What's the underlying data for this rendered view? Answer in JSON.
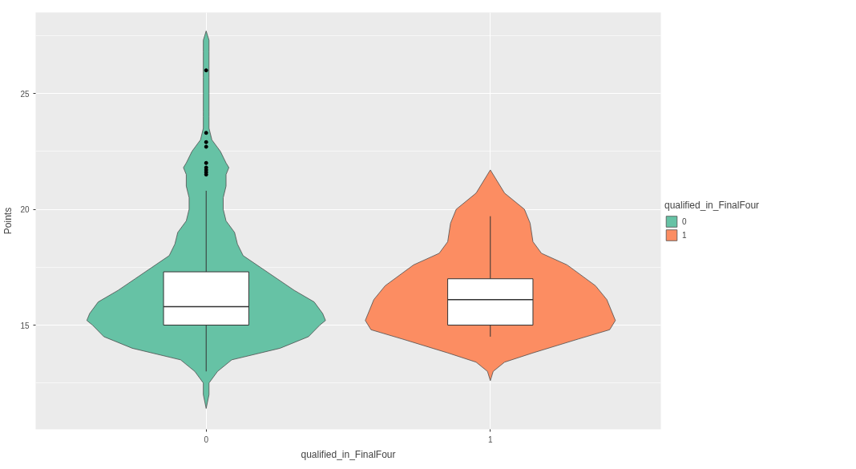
{
  "chart_data": {
    "type": "box",
    "xlabel": "qualified_in_FinalFour",
    "ylabel": "Points",
    "legend_title": "qualified_in_FinalFour",
    "series": [
      {
        "name": "0",
        "color": "#66c2a5",
        "type": "area",
        "x": [
          0,
          -0.01,
          -0.01,
          -0.04,
          -0.09,
          -0.26,
          -0.36,
          -0.4,
          -0.42,
          -0.41,
          -0.38,
          -0.31,
          -0.25,
          -0.19,
          -0.13,
          -0.11,
          -0.1,
          -0.07,
          -0.06,
          -0.06,
          -0.07,
          -0.07,
          -0.08,
          -0.07,
          -0.05,
          -0.02,
          -0.01,
          -0.01,
          -0.01,
          -0.01,
          -0.01,
          -0.01,
          -0.01,
          -0.01,
          0,
          0.01,
          0.01,
          0.01,
          0.01,
          0.01,
          0.01,
          0.01,
          0.01,
          0.02,
          0.05,
          0.07,
          0.08,
          0.07,
          0.07,
          0.06,
          0.06,
          0.07,
          0.1,
          0.11,
          0.13,
          0.19,
          0.25,
          0.31,
          0.38,
          0.41,
          0.42,
          0.4,
          0.36,
          0.26,
          0.09,
          0.04,
          0.01,
          0.01
        ],
        "values": [
          11.4,
          12,
          12.5,
          13,
          13.5,
          14,
          14.5,
          15,
          15.2,
          15.5,
          16,
          16.5,
          17,
          17.5,
          18,
          18.5,
          19,
          19.5,
          20,
          20.5,
          21,
          21.5,
          21.8,
          22,
          22.5,
          23,
          23.5,
          24,
          24.2,
          25,
          25.7,
          26.2,
          26.8,
          27.3,
          27.7,
          27.3,
          26.8,
          26.2,
          25.7,
          25,
          24.2,
          24,
          23.5,
          23,
          22.5,
          22,
          21.8,
          21.5,
          21,
          20.5,
          20,
          19.5,
          19,
          18.5,
          18,
          17.5,
          17,
          16.5,
          16,
          15.5,
          15.2,
          15,
          14.5,
          14,
          13.5,
          13,
          12.5,
          12
        ]
      },
      {
        "name": "1",
        "color": "#fc8d62",
        "type": "area",
        "x": [
          1,
          0.99,
          0.95,
          0.85,
          0.69,
          0.58,
          0.56,
          0.59,
          0.63,
          0.73,
          0.82,
          0.85,
          0.86,
          0.88,
          0.95,
          1,
          1.05,
          1.12,
          1.14,
          1.15,
          1.18,
          1.27,
          1.37,
          1.41,
          1.44,
          1.42,
          1.31,
          1.15,
          1.05,
          1.01
        ],
        "values": [
          12.6,
          13,
          13.4,
          13.8,
          14.4,
          14.8,
          15.2,
          16.1,
          16.7,
          17.6,
          18.1,
          18.6,
          19.4,
          20,
          20.7,
          21.7,
          20.7,
          20,
          19.4,
          18.6,
          18.1,
          17.6,
          16.7,
          16.1,
          15.2,
          14.8,
          14.4,
          13.8,
          13.4,
          13
        ]
      },
      {
        "x": [
          0,
          1
        ],
        "boxes": [
          {
            "low": 13.0,
            "q1": 15.0,
            "median": 15.8,
            "q3": 17.3,
            "high": 20.8,
            "outliers": [
              26.0,
              23.3,
              22.9,
              22.7,
              22.0,
              21.8,
              21.7,
              21.6,
              21.5
            ]
          },
          {
            "low": 14.5,
            "q1": 15.0,
            "median": 16.1,
            "q3": 17.0,
            "high": 19.7
          }
        ]
      }
    ],
    "xlim": [
      -0.6,
      1.6
    ],
    "xticks": [
      0,
      1
    ],
    "ylim": [
      10.5,
      28.5
    ],
    "yticks": [
      15,
      20,
      25
    ],
    "grid": true,
    "legend": "right"
  }
}
